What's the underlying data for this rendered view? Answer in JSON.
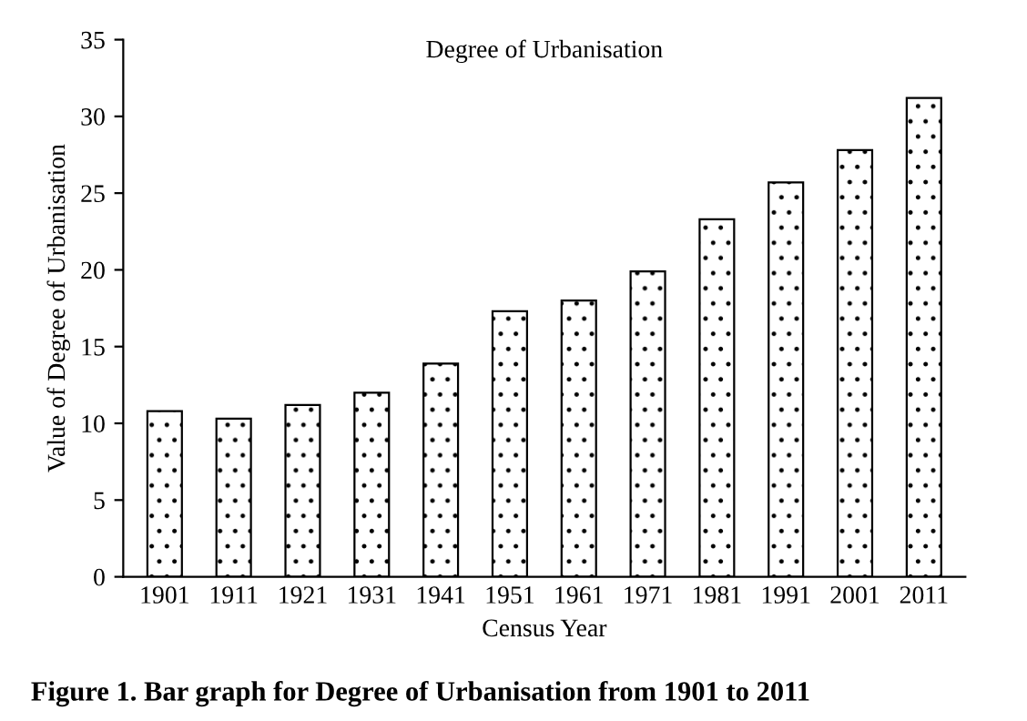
{
  "chart_data": {
    "type": "bar",
    "title": "Degree of Urbanisation",
    "xlabel": "Census Year",
    "ylabel": "Value of Degree of Urbanisation",
    "categories": [
      "1901",
      "1911",
      "1921",
      "1931",
      "1941",
      "1951",
      "1961",
      "1971",
      "1981",
      "1991",
      "2001",
      "2011"
    ],
    "values": [
      10.8,
      10.3,
      11.2,
      12.0,
      13.9,
      17.3,
      18.0,
      19.9,
      23.3,
      25.7,
      27.8,
      31.2
    ],
    "ylim": [
      0,
      35
    ],
    "yticks": [
      0,
      5,
      10,
      15,
      20,
      25,
      30,
      35
    ],
    "grid": false,
    "legend": false,
    "annotations": [
      "Figure 1. Bar graph for Degree of Urbanisation from 1901 to 2011"
    ]
  }
}
